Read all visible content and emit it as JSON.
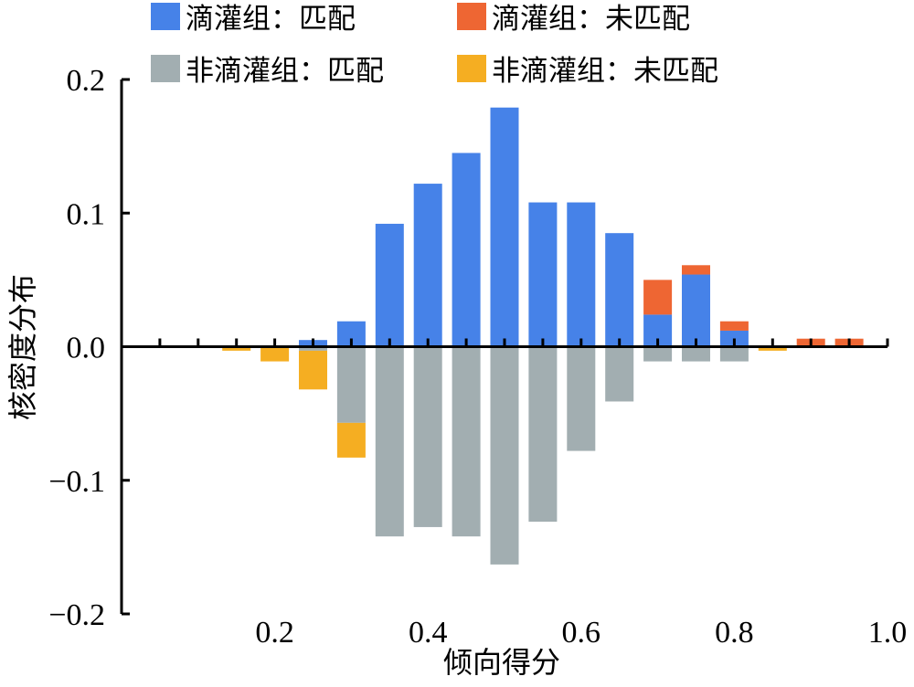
{
  "chart_data": {
    "type": "bar",
    "title": "",
    "xlabel": "倾向得分",
    "ylabel": "核密度分布",
    "xlim": [
      0,
      1
    ],
    "ylim": [
      -0.2,
      0.2
    ],
    "x_ticks": [
      0.2,
      0.4,
      0.6,
      0.8,
      1.0
    ],
    "x_tick_labels": [
      "0.2",
      "0.4",
      "0.6",
      "0.8",
      "1.0"
    ],
    "y_ticks": [
      0.2,
      0.1,
      0.0,
      -0.1,
      -0.2
    ],
    "y_tick_labels": [
      "0.2",
      "0.1",
      "0.0",
      "−0.1",
      "−0.2"
    ],
    "bin_width": 0.05,
    "x": [
      0.15,
      0.2,
      0.25,
      0.3,
      0.35,
      0.4,
      0.45,
      0.5,
      0.55,
      0.6,
      0.65,
      0.7,
      0.75,
      0.8,
      0.85,
      0.9,
      0.95
    ],
    "series": [
      {
        "name": "滴灌组：匹配",
        "color": "#4682E8",
        "stack": "upper",
        "values": [
          0,
          0,
          0.005,
          0.019,
          0.092,
          0.122,
          0.145,
          0.179,
          0.108,
          0.108,
          0.085,
          0.024,
          0.054,
          0.012,
          0,
          0,
          0
        ]
      },
      {
        "name": "滴灌组：未匹配",
        "color": "#EE6633",
        "stack": "upper",
        "values": [
          0,
          0,
          0,
          0,
          0,
          0,
          0,
          0,
          0,
          0,
          0,
          0.026,
          0.007,
          0.007,
          0,
          0.006,
          0.006
        ]
      },
      {
        "name": "非滴灌组：匹配",
        "color": "#A2AEB1",
        "stack": "lower",
        "values": [
          0,
          0,
          -0.003,
          -0.057,
          -0.142,
          -0.135,
          -0.142,
          -0.163,
          -0.131,
          -0.078,
          -0.041,
          -0.011,
          -0.011,
          -0.011,
          0,
          0,
          0
        ]
      },
      {
        "name": "非滴灌组：未匹配",
        "color": "#F5AE22",
        "stack": "lower",
        "values": [
          -0.003,
          -0.011,
          -0.029,
          -0.026,
          0,
          0,
          0,
          0,
          0,
          0,
          0,
          0,
          0,
          0,
          -0.003,
          0,
          0
        ]
      }
    ],
    "legend_position": "top"
  }
}
